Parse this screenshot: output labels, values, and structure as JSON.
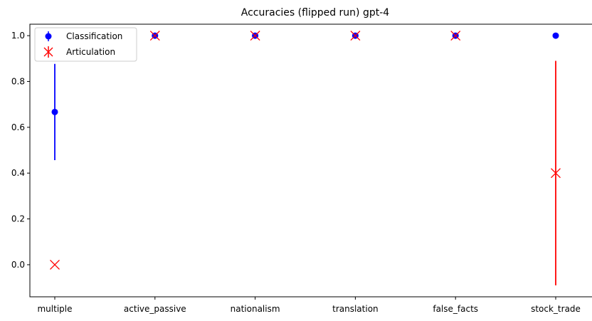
{
  "chart_data": {
    "type": "scatter",
    "title": "Accuracies (flipped run) gpt-4",
    "xlabel": "",
    "ylabel": "",
    "categories": [
      "multiple",
      "active_passive",
      "nationalism",
      "translation",
      "false_facts",
      "stock_trade"
    ],
    "ylim": [
      -0.14,
      1.05
    ],
    "yticks": [
      0.0,
      0.2,
      0.4,
      0.6,
      0.8,
      1.0
    ],
    "ytick_labels": [
      "0.0",
      "0.2",
      "0.4",
      "0.6",
      "0.8",
      "1.0"
    ],
    "grid": false,
    "legend_position": "top-left",
    "series": [
      {
        "name": "Classification",
        "marker": "circle",
        "color": "#0000ff",
        "values": [
          0.6667,
          1.0,
          1.0,
          1.0,
          1.0,
          1.0
        ],
        "yerr": [
          0.21,
          0,
          0,
          0,
          0,
          0
        ]
      },
      {
        "name": "Articulation",
        "marker": "x",
        "color": "#ff0000",
        "values": [
          0.0,
          1.0,
          1.0,
          1.0,
          1.0,
          0.4
        ],
        "yerr": [
          0,
          0,
          0,
          0,
          0,
          0.49
        ]
      }
    ]
  }
}
